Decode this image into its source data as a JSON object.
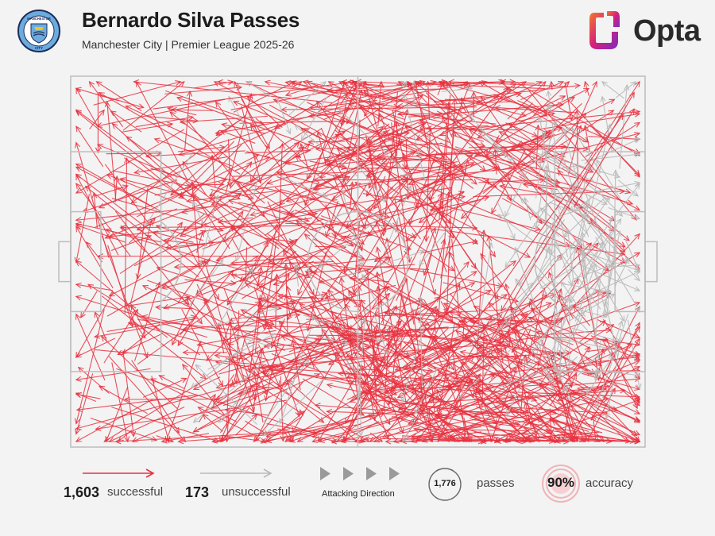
{
  "header": {
    "title": "Bernardo Silva Passes",
    "subtitle": "Manchester City | Premier League 2025-26",
    "crest_icon": "manchester-city-crest-icon",
    "crest_text_top": "MANCHESTER",
    "crest_text_bottom": "CITY",
    "brand_text": "Opta",
    "brand_icon": "opta-logo-icon"
  },
  "colors": {
    "successful": "#e8313f",
    "unsuccessful": "#b9b9b9",
    "pitch_lines": "#bdbdbd",
    "background": "#f3f3f3"
  },
  "chart_data": {
    "type": "pass-map",
    "pitch": {
      "length": 105,
      "width": 68,
      "attacking_direction": "left-to-right"
    },
    "totals": {
      "successful": 1603,
      "unsuccessful": 173,
      "passes": 1776,
      "accuracy_pct": 90
    },
    "note_sample": "representative sample of pass vectors (x,y start -> end, pitch metres)"
  },
  "legend": {
    "successful_value": "1,603",
    "successful_label": "successful",
    "unsuccessful_value": "173",
    "unsuccessful_label": "unsuccessful",
    "direction_label": "Attacking Direction",
    "direction_icon": "play-triangle-icon",
    "passes_value": "1,776",
    "passes_label": "passes",
    "accuracy_value": "90%",
    "accuracy_label": "accuracy"
  }
}
